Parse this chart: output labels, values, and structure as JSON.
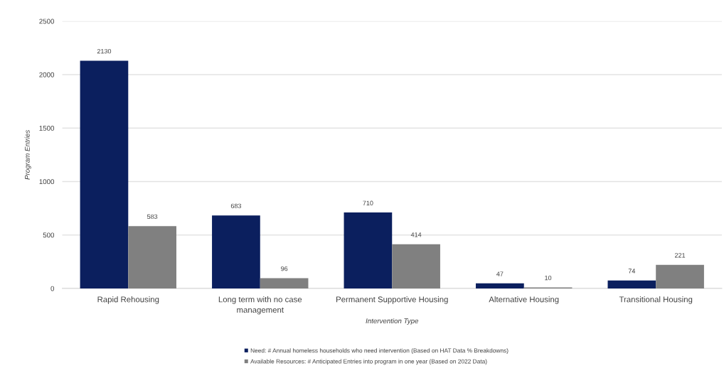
{
  "chart_data": {
    "type": "bar",
    "xlabel": "Intervention Type",
    "ylabel": "Program Entries",
    "categories": [
      "Rapid Rehousing",
      "Long term with no case management",
      "Permanent Supportive Housing",
      "Alternative Housing",
      "Transitional Housing"
    ],
    "series": [
      {
        "name": "Need: # Annual homeless households who need intervention (Based on HAT Data % Breakdowns)",
        "color": "#0b1f5e",
        "values": [
          2130,
          683,
          710,
          47,
          74
        ]
      },
      {
        "name": "Available Resources: # Anticipated Entries into program in one year (Based on 2022 Data)",
        "color": "#808080",
        "values": [
          583,
          96,
          414,
          10,
          221
        ]
      }
    ],
    "ylim": [
      0,
      2500
    ],
    "yticks": [
      0,
      500,
      1000,
      1500,
      2000,
      2500
    ],
    "grid": "y",
    "legend": "bottom",
    "data_labels": true
  }
}
